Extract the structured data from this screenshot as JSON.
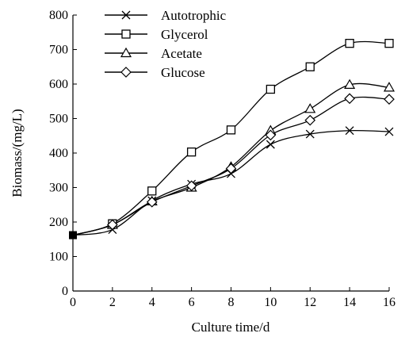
{
  "chart_data": {
    "type": "line",
    "xlabel": "Culture time/d",
    "ylabel": "Biomass/(mg/L)",
    "xlim": [
      0,
      16
    ],
    "ylim": [
      0,
      800
    ],
    "xticks": [
      0,
      2,
      4,
      6,
      8,
      10,
      12,
      14,
      16
    ],
    "yticks": [
      0,
      100,
      200,
      300,
      400,
      500,
      600,
      700,
      800
    ],
    "grid": false,
    "legend_position": "top-left",
    "x": [
      0,
      2,
      4,
      6,
      8,
      10,
      12,
      14,
      16
    ],
    "series": [
      {
        "name": "Autotrophic",
        "marker": "x",
        "values": [
          162,
          178,
          262,
          310,
          340,
          425,
          455,
          465,
          462
        ]
      },
      {
        "name": "Glycerol",
        "marker": "square",
        "values": [
          162,
          195,
          290,
          403,
          467,
          585,
          650,
          718,
          718
        ]
      },
      {
        "name": "Acetate",
        "marker": "triangle",
        "values": [
          162,
          192,
          260,
          300,
          360,
          465,
          528,
          598,
          590
        ]
      },
      {
        "name": "Glucose",
        "marker": "diamond",
        "values": [
          162,
          192,
          258,
          305,
          355,
          452,
          495,
          558,
          556
        ]
      }
    ]
  }
}
